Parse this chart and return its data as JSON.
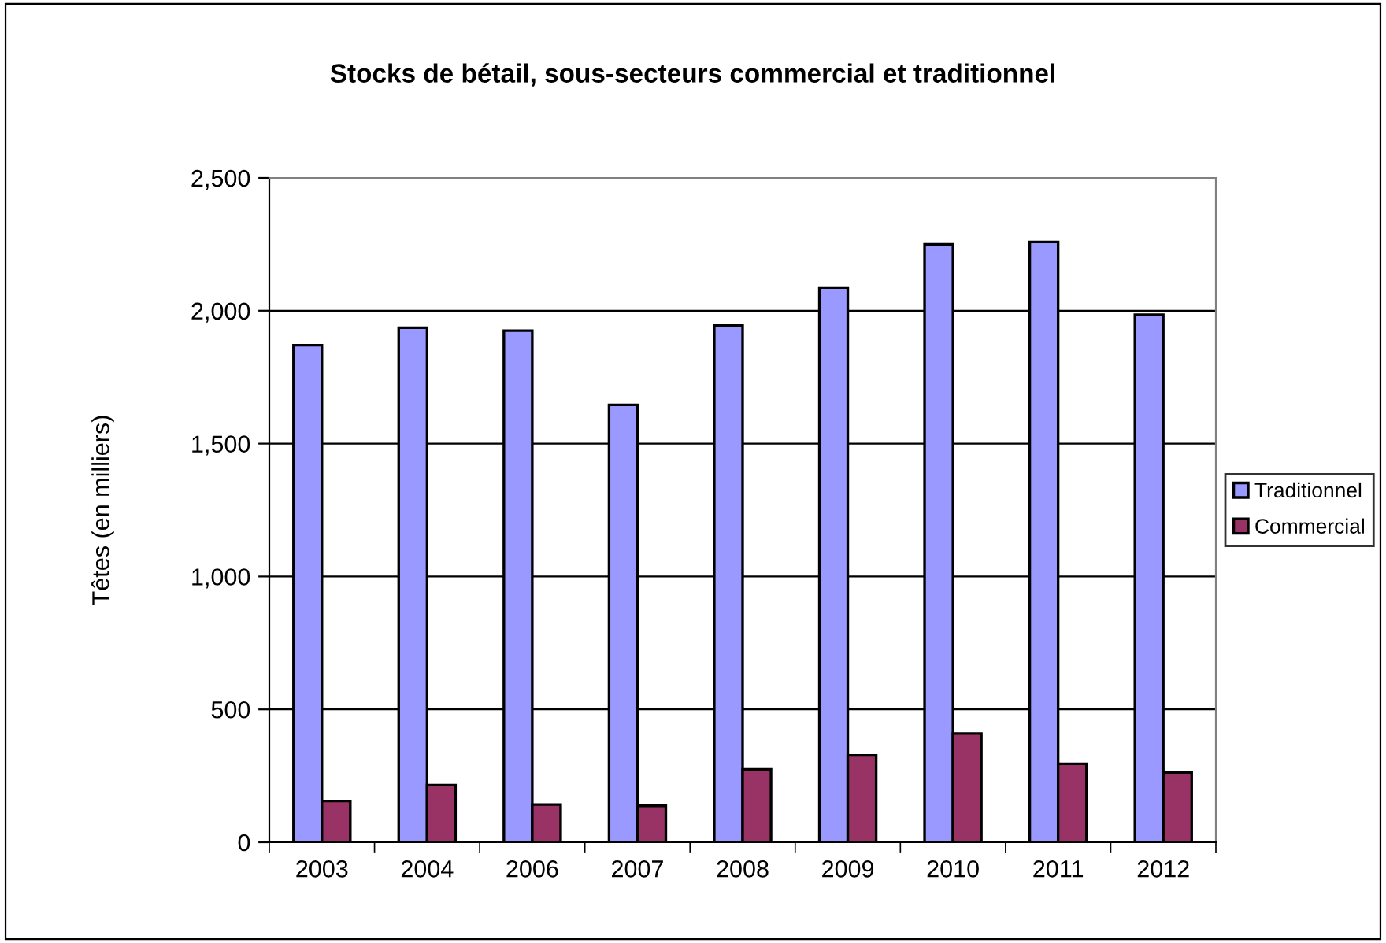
{
  "chart_data": {
    "type": "bar",
    "title": "Stocks de bétail, sous-secteurs commercial et traditionnel",
    "ylabel": "Têtes (en milliers)",
    "categories": [
      "2003",
      "2004",
      "2006",
      "2007",
      "2008",
      "2009",
      "2010",
      "2011",
      "2012"
    ],
    "series": [
      {
        "name": "Traditionnel",
        "color": "#9999ff",
        "values": [
          1870,
          1936,
          1925,
          1646,
          1945,
          2087,
          2250,
          2259,
          1985
        ]
      },
      {
        "name": "Commercial",
        "color": "#993366",
        "values": [
          155,
          215,
          142,
          137,
          274,
          327,
          409,
          295,
          263
        ]
      }
    ],
    "ylim": [
      0,
      2500
    ],
    "yticks": [
      {
        "value": 0,
        "label": "0"
      },
      {
        "value": 500,
        "label": "500"
      },
      {
        "value": 1000,
        "label": "1,000"
      },
      {
        "value": 1500,
        "label": "1,500"
      },
      {
        "value": 2000,
        "label": "2,000"
      },
      {
        "value": 2500,
        "label": "2,500"
      }
    ],
    "grid": "y",
    "legend": "right"
  }
}
